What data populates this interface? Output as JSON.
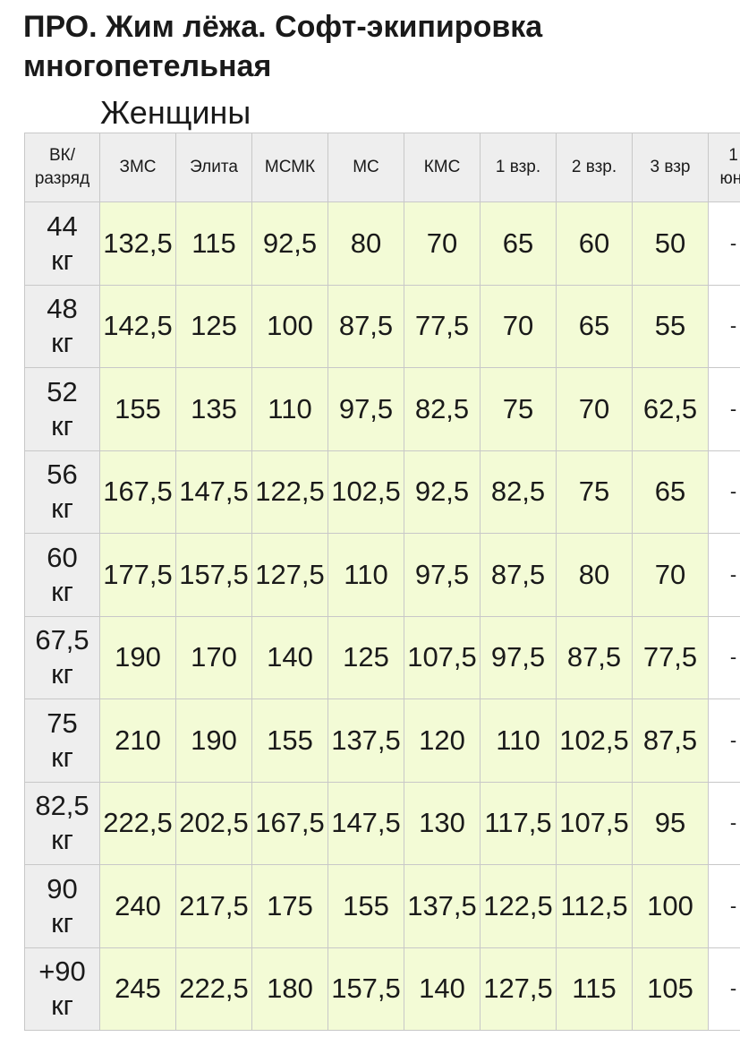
{
  "title": "ПРО. Жим лёжа. Софт-экипировка многопетельная",
  "subtitle": "Женщины",
  "table": {
    "header_line1": "ВК/",
    "header_line2": "разряд",
    "columns": [
      "ЗМС",
      "Элита",
      "МСМК",
      "МС",
      "КМС",
      "1 взр.",
      "2 взр.",
      "3 взр"
    ],
    "last_col_line1": "1",
    "last_col_line2": "юн.",
    "rows": [
      {
        "w": "44",
        "u": "кг",
        "v": [
          "132,5",
          "115",
          "92,5",
          "80",
          "70",
          "65",
          "60",
          "50",
          "-"
        ]
      },
      {
        "w": "48",
        "u": "кг",
        "v": [
          "142,5",
          "125",
          "100",
          "87,5",
          "77,5",
          "70",
          "65",
          "55",
          "-"
        ]
      },
      {
        "w": "52",
        "u": "кг",
        "v": [
          "155",
          "135",
          "110",
          "97,5",
          "82,5",
          "75",
          "70",
          "62,5",
          "-"
        ]
      },
      {
        "w": "56",
        "u": "кг",
        "v": [
          "167,5",
          "147,5",
          "122,5",
          "102,5",
          "92,5",
          "82,5",
          "75",
          "65",
          "-"
        ]
      },
      {
        "w": "60",
        "u": "кг",
        "v": [
          "177,5",
          "157,5",
          "127,5",
          "110",
          "97,5",
          "87,5",
          "80",
          "70",
          "-"
        ]
      },
      {
        "w": "67,5",
        "u": "кг",
        "v": [
          "190",
          "170",
          "140",
          "125",
          "107,5",
          "97,5",
          "87,5",
          "77,5",
          "-"
        ]
      },
      {
        "w": "75",
        "u": "кг",
        "v": [
          "210",
          "190",
          "155",
          "137,5",
          "120",
          "110",
          "102,5",
          "87,5",
          "-"
        ]
      },
      {
        "w": "82,5",
        "u": "кг",
        "v": [
          "222,5",
          "202,5",
          "167,5",
          "147,5",
          "130",
          "117,5",
          "107,5",
          "95",
          "-"
        ]
      },
      {
        "w": "90",
        "u": "кг",
        "v": [
          "240",
          "217,5",
          "175",
          "155",
          "137,5",
          "122,5",
          "112,5",
          "100",
          "-"
        ]
      },
      {
        "w": "+90",
        "u": "кг",
        "v": [
          "245",
          "222,5",
          "180",
          "157,5",
          "140",
          "127,5",
          "115",
          "105",
          "-"
        ]
      }
    ]
  }
}
